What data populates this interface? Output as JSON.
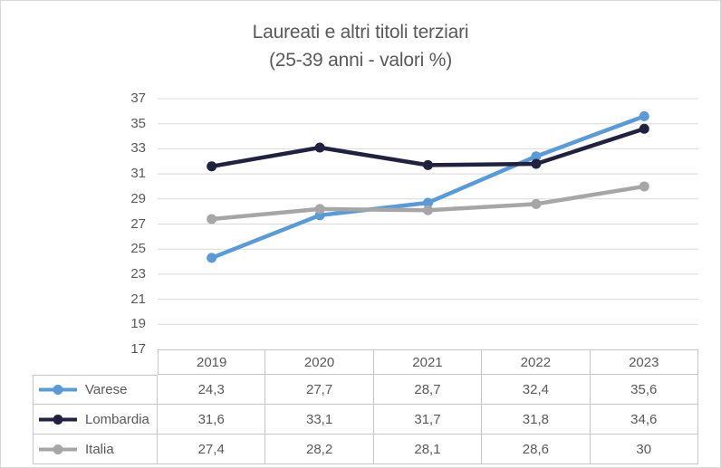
{
  "chart_data": {
    "type": "line",
    "title": "Laureati e altri titoli terziari",
    "subtitle": "(25-39 anni - valori %)",
    "categories": [
      "2019",
      "2020",
      "2021",
      "2022",
      "2023"
    ],
    "series": [
      {
        "name": "Varese",
        "color": "#5B9BD5",
        "values": [
          24.3,
          27.7,
          28.7,
          32.4,
          35.6
        ],
        "display": [
          "24,3",
          "27,7",
          "28,7",
          "32,4",
          "35,6"
        ]
      },
      {
        "name": "Lombardia",
        "color": "#212240",
        "values": [
          31.6,
          33.1,
          31.7,
          31.8,
          34.6
        ],
        "display": [
          "31,6",
          "33,1",
          "31,7",
          "31,8",
          "34,6"
        ]
      },
      {
        "name": "Italia",
        "color": "#A6A6A6",
        "values": [
          27.4,
          28.2,
          28.1,
          28.6,
          30
        ],
        "display": [
          "27,4",
          "28,2",
          "28,1",
          "28,6",
          "30"
        ]
      }
    ],
    "ylim": [
      17,
      37
    ],
    "yticks": [
      17,
      19,
      21,
      23,
      25,
      27,
      29,
      31,
      33,
      35,
      37
    ],
    "grid": "horizontal",
    "legend_position": "data-table-left",
    "xlabel": "",
    "ylabel": ""
  },
  "style_colors": {
    "title_text": "#595959",
    "axis_text": "#595959",
    "gridline": "#D9D9D9",
    "table_border": "#C6C6C6",
    "frame_border": "#D9D9D9"
  }
}
